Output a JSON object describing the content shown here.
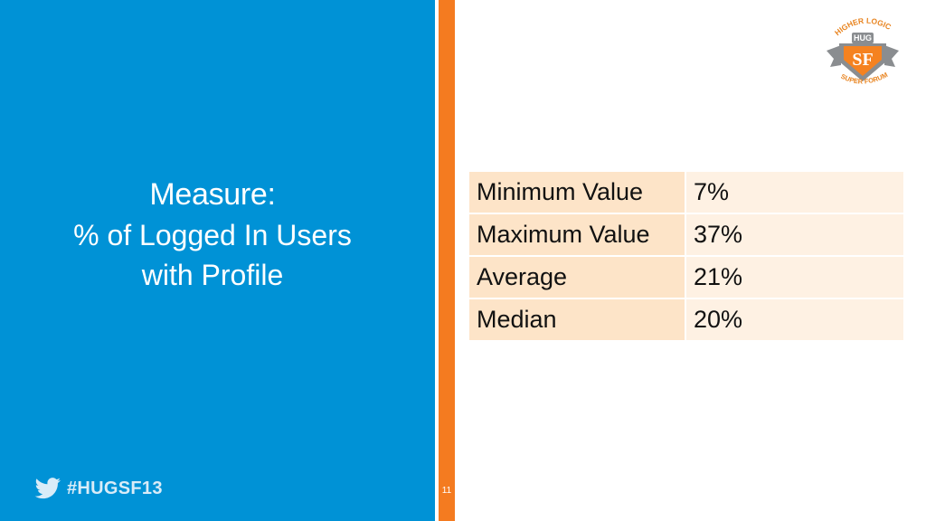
{
  "slide": {
    "title_line1": "Measure:",
    "title_line2": "% of Logged In Users",
    "title_line3": "with Profile",
    "hashtag": "#HUGSF13",
    "page_number": "11"
  },
  "logo": {
    "top_text": "HIGHER LOGIC",
    "badge_text": "HUG",
    "monogram": "SF",
    "bottom_text": "SUPER FORUM"
  },
  "table": {
    "rows": [
      {
        "label": "Minimum Value",
        "value": "7%"
      },
      {
        "label": "Maximum Value",
        "value": "37%"
      },
      {
        "label": "Average",
        "value": "21%"
      },
      {
        "label": "Median",
        "value": "20%"
      }
    ]
  },
  "colors": {
    "left_panel": "#0092d6",
    "accent_orange": "#f47b20",
    "label_cell": "#fde4c8",
    "value_cell": "#fef1e3"
  }
}
